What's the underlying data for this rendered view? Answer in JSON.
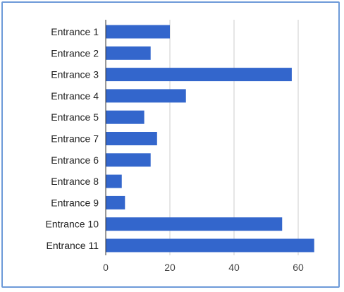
{
  "chart_data": {
    "type": "bar",
    "orientation": "horizontal",
    "categories": [
      "Entrance 1",
      "Entrance 2",
      "Entrance 3",
      "Entrance 4",
      "Entrance 5",
      "Entrance 7",
      "Entrance 6",
      "Entrance 8",
      "Entrance 9",
      "Entrance 10",
      "Entrance 11"
    ],
    "values": [
      20,
      14,
      58,
      25,
      12,
      16,
      14,
      5,
      6,
      55,
      65
    ],
    "xlim": [
      0,
      65
    ],
    "xticks": [
      0,
      20,
      40,
      60
    ],
    "grid": true,
    "colors": {
      "bar": "#3366cc",
      "grid": "#cccccc",
      "axis": "#333333",
      "border": "#6d9ad8"
    }
  }
}
